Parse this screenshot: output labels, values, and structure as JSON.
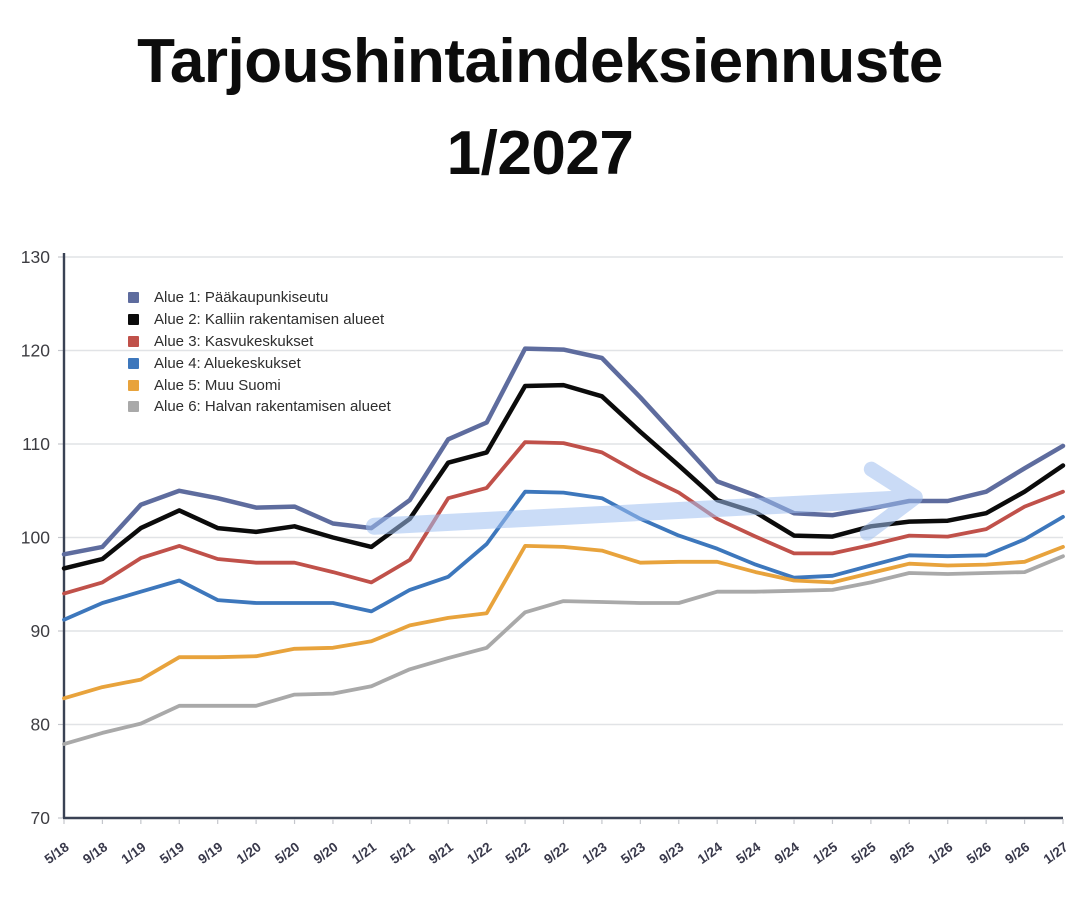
{
  "title": {
    "line1": "Tarjoushintaindeksiennuste",
    "line2": "1/2027"
  },
  "chart_data": {
    "type": "line",
    "title": "Tarjoushintaindeksiennuste 1/2027",
    "xlabel": "",
    "ylabel": "",
    "ylim": [
      70,
      130
    ],
    "y_ticks": [
      130,
      120,
      110,
      100,
      90,
      80,
      70
    ],
    "grid": true,
    "legend_position": "top-left-inside",
    "x_labels": [
      "5/18",
      "9/18",
      "1/19",
      "5/19",
      "9/19",
      "1/20",
      "5/20",
      "9/20",
      "1/21",
      "5/21",
      "9/21",
      "1/22",
      "5/22",
      "9/22",
      "1/23",
      "5/23",
      "9/23",
      "1/24",
      "5/24",
      "9/24",
      "1/25",
      "5/25",
      "9/25",
      "1/26",
      "5/26",
      "9/26",
      "1/27"
    ],
    "series": [
      {
        "name": "Alue 1: Pääkaupunkiseutu",
        "color": "#5E6C9E",
        "values": [
          98.2,
          99,
          103.5,
          105,
          104.2,
          103.2,
          103.3,
          101.5,
          101,
          104,
          110.5,
          112.3,
          120.2,
          120.1,
          119.2,
          115,
          110.5,
          106,
          104.5,
          102.6,
          102.4,
          103.1,
          103.9,
          103.9,
          104.9,
          107.4,
          109.8
        ]
      },
      {
        "name": "Alue 2: Kalliin rakentamisen alueet",
        "color": "#0b0b0b",
        "values": [
          96.7,
          97.7,
          101,
          102.9,
          101,
          100.6,
          101.2,
          100,
          99,
          102,
          108,
          109.1,
          116.2,
          116.3,
          115.1,
          111.3,
          107.7,
          104,
          102.7,
          100.2,
          100.1,
          101.2,
          101.7,
          101.8,
          102.6,
          104.9,
          107.7
        ]
      },
      {
        "name": "Alue 3: Kasvukeskukset",
        "color": "#C0514A",
        "values": [
          94,
          95.2,
          97.8,
          99.1,
          97.7,
          97.3,
          97.3,
          96.3,
          95.2,
          97.6,
          104.2,
          105.3,
          110.2,
          110.1,
          109.1,
          106.8,
          104.8,
          102,
          100.1,
          98.3,
          98.3,
          99.2,
          100.2,
          100.1,
          100.9,
          103.3,
          104.9
        ]
      },
      {
        "name": "Alue 4: Aluekeskukset",
        "color": "#3D77BC",
        "values": [
          91.2,
          93,
          94.2,
          95.4,
          93.3,
          93,
          93,
          93,
          92.1,
          94.4,
          95.8,
          99.3,
          104.9,
          104.8,
          104.2,
          102,
          100.2,
          98.8,
          97.1,
          95.7,
          95.9,
          97,
          98.1,
          98,
          98.1,
          99.8,
          102.2
        ]
      },
      {
        "name": "Alue 5: Muu Suomi",
        "color": "#E8A33C",
        "values": [
          82.8,
          84,
          84.8,
          87.2,
          87.2,
          87.3,
          88.1,
          88.2,
          88.9,
          90.6,
          91.4,
          91.9,
          99.1,
          99,
          98.6,
          97.3,
          97.4,
          97.4,
          96.3,
          95.4,
          95.2,
          96.2,
          97.2,
          97,
          97.1,
          97.4,
          99
        ]
      },
      {
        "name": "Alue 6: Halvan rakentamisen alueet",
        "color": "#A9A9A9",
        "values": [
          77.9,
          79.1,
          80.1,
          82,
          82,
          82,
          83.2,
          83.3,
          84.1,
          85.9,
          87.1,
          88.2,
          92,
          93.2,
          93.1,
          93,
          93,
          94.2,
          94.2,
          94.3,
          94.4,
          95.2,
          96.2,
          96.1,
          96.2,
          96.3,
          98
        ]
      }
    ],
    "annotation": {
      "type": "trend-arrow",
      "description": "translucent light-blue arrow pointing right, rising slightly",
      "color": "#9FBFF0",
      "opacity": 0.55,
      "from_x_label": "1/21",
      "from_value": 101.2,
      "to_x_label": "9/25",
      "to_value": 104.1
    }
  },
  "colors": {
    "background": "#FFFFFF",
    "gridline": "#E1E3E6",
    "axis": "#3A4254",
    "minor_tick": "#C4C6CC",
    "y_tick_label": "#3D3D42",
    "x_tick_label": "#38384A",
    "title": "#0C0C0C",
    "legend_text": "#2E2E2E"
  }
}
